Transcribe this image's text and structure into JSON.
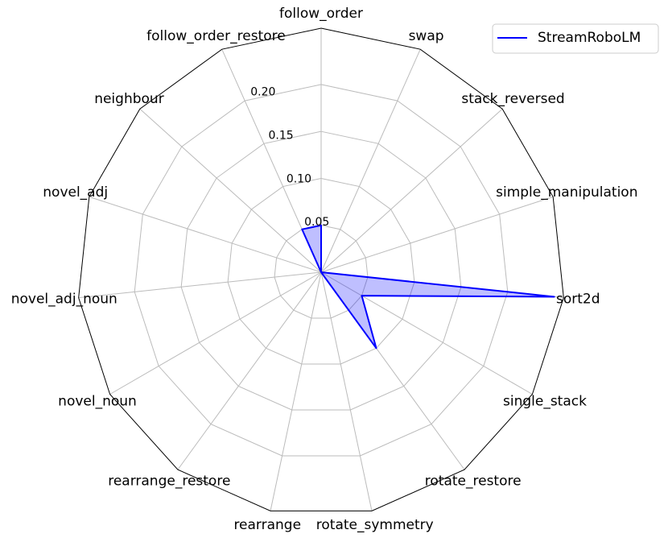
{
  "chart_data": {
    "type": "radar",
    "categories": [
      "follow_order",
      "swap",
      "stack_reversed",
      "simple_manipulation",
      "sort2d",
      "single_stack",
      "rotate_restore",
      "rotate_symmetry",
      "rearrange",
      "rearrange_restore",
      "novel_noun",
      "novel_adj_noun",
      "novel_adj",
      "neighbour",
      "follow_order_restore"
    ],
    "series": [
      {
        "name": "StreamRoboLM",
        "color": "#0000ff",
        "values": [
          0.05,
          0,
          0,
          0,
          0.25,
          0.05,
          0.1,
          0,
          0,
          0,
          0,
          0,
          0,
          0,
          0.05
        ]
      }
    ],
    "ylim": [
      0,
      0.26
    ],
    "yticks": [
      0.05,
      {
        "value": 0.1,
        "label": "0.10"
      },
      0.15,
      {
        "value": 0.2,
        "label": "0.20"
      }
    ],
    "grid": true,
    "legend": "upper right"
  }
}
